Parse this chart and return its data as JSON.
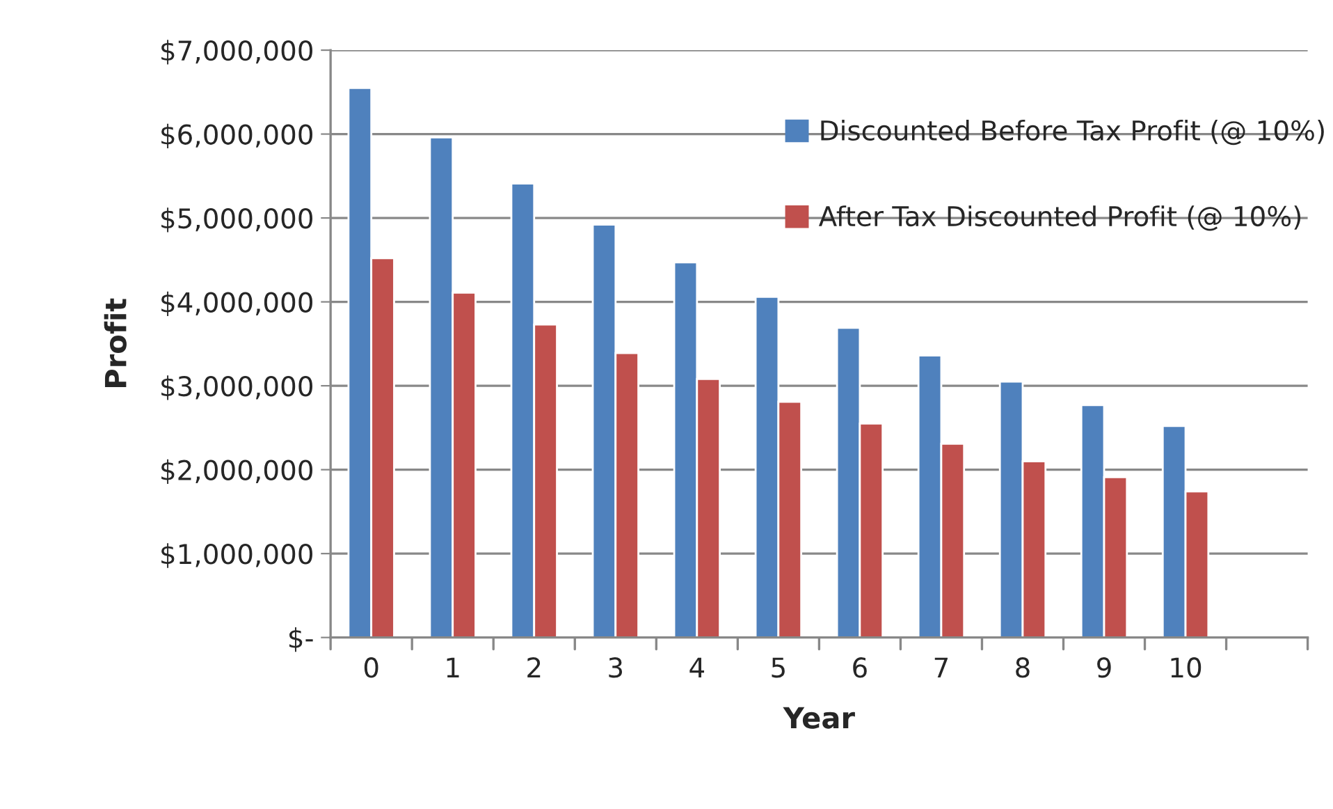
{
  "chart_data": {
    "type": "bar",
    "xlabel": "Year",
    "ylabel": "Profit",
    "categories": [
      "0",
      "1",
      "2",
      "3",
      "4",
      "5",
      "6",
      "7",
      "8",
      "9",
      "10",
      null
    ],
    "series": [
      {
        "name": "Discounted Before Tax Profit (@ 10%)",
        "color": "#4f81bd",
        "values": [
          6550000,
          5960000,
          5410000,
          4920000,
          4470000,
          4060000,
          3690000,
          3360000,
          3050000,
          2770000,
          2520000,
          null
        ]
      },
      {
        "name": "After Tax Discounted Profit (@ 10%)",
        "color": "#c0504d",
        "values": [
          4520000,
          4110000,
          3730000,
          3390000,
          3080000,
          2810000,
          2550000,
          2310000,
          2100000,
          1910000,
          1740000,
          null
        ]
      }
    ],
    "ylim": [
      0,
      7000000
    ],
    "yticks": [
      {
        "value": 0,
        "label": "$-"
      },
      {
        "value": 1000000,
        "label": "$1,000,000"
      },
      {
        "value": 2000000,
        "label": "$2,000,000"
      },
      {
        "value": 3000000,
        "label": "$3,000,000"
      },
      {
        "value": 4000000,
        "label": "$4,000,000"
      },
      {
        "value": 5000000,
        "label": "$5,000,000"
      },
      {
        "value": 6000000,
        "label": "$6,000,000"
      },
      {
        "value": 7000000,
        "label": "$7,000,000"
      }
    ],
    "grid": "y",
    "legend": "top right"
  }
}
